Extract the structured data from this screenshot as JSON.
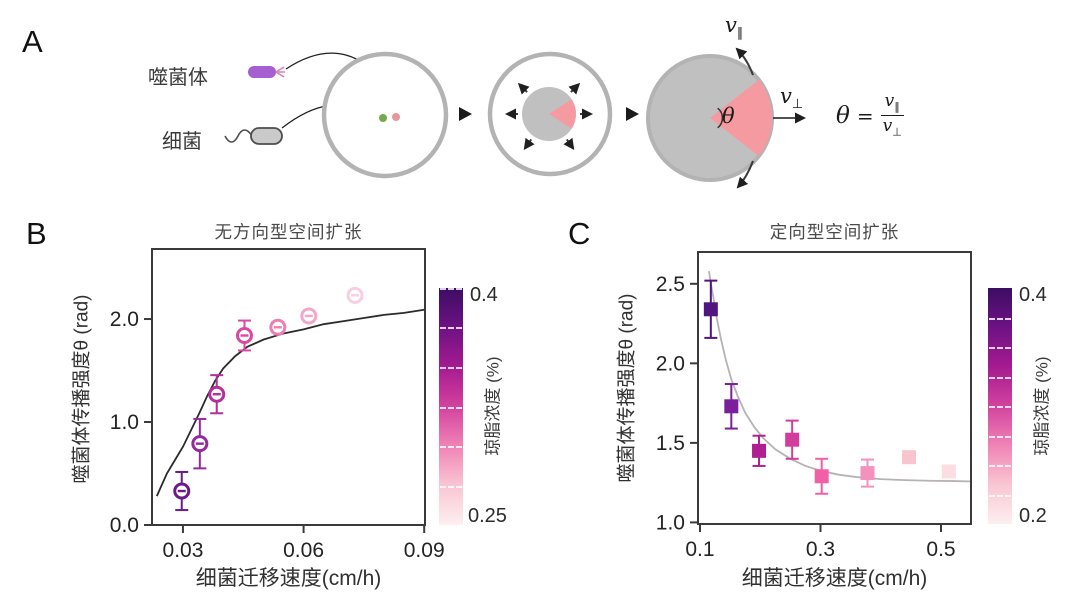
{
  "panel_a": {
    "label": "A",
    "phage_label": "噬菌体",
    "bacteria_label": "细菌",
    "v_parallel": {
      "base": "v",
      "sub": "∥"
    },
    "v_perp": {
      "base": "v",
      "sub": "⊥"
    },
    "theta_angle": "θ",
    "equation": {
      "lhs": "θ",
      "eq": "=",
      "num_base": "v",
      "num_sub": "∥",
      "den_base": "v",
      "den_sub": "⊥"
    },
    "colors": {
      "phage": "#a55fd0",
      "phage_fiber": "#d583b5",
      "bacteria_fill": "#cacaca",
      "bacteria_stroke": "#4d4d4d",
      "dish_ring": "#b3b3b3",
      "colony_gray": "#c1c0c0",
      "plaque_pink": "#f59aa1",
      "dot_green": "#76a84e",
      "dot_pink": "#e697a0",
      "arrow_dark": "#2a2a2a"
    }
  },
  "chart_data": [
    {
      "id": "B",
      "panel_label": "B",
      "type": "scatter",
      "title": "无方向型空间扩张",
      "xlabel": "细菌迁移速度(cm/h)",
      "ylabel": "噬菌体传播强度θ (rad)",
      "xlim": [
        0.0223,
        0.0902
      ],
      "ylim": [
        0,
        2.68
      ],
      "xticks": [
        0.03,
        0.06,
        0.09
      ],
      "xtick_labels": [
        "0.03",
        "0.06",
        "0.09"
      ],
      "yticks": [
        0,
        1,
        2
      ],
      "ytick_labels": [
        "0.0",
        "1.0",
        "2.0"
      ],
      "grid": false,
      "marker": "open-circle",
      "points": [
        {
          "x": 0.0297,
          "y": 0.33,
          "err": 0.185,
          "color": "#6a1c86"
        },
        {
          "x": 0.0342,
          "y": 0.79,
          "err": 0.24,
          "color": "#952a9b"
        },
        {
          "x": 0.0384,
          "y": 1.27,
          "err": 0.185,
          "color": "#b42f9c"
        },
        {
          "x": 0.0453,
          "y": 1.84,
          "err": 0.145,
          "color": "#d84aa2"
        },
        {
          "x": 0.0536,
          "y": 1.92,
          "err": 0.05,
          "color": "#ec7fb4"
        },
        {
          "x": 0.0613,
          "y": 2.03,
          "err": 0.04,
          "color": "#f2a6c8"
        },
        {
          "x": 0.0728,
          "y": 2.23,
          "err": 0.035,
          "color": "#f8cfdc"
        }
      ],
      "fit_curve": {
        "color": "#2b2b2b",
        "points": [
          [
            0.0235,
            0.28
          ],
          [
            0.026,
            0.5
          ],
          [
            0.028,
            0.63
          ],
          [
            0.03,
            0.76
          ],
          [
            0.032,
            0.92
          ],
          [
            0.034,
            1.08
          ],
          [
            0.036,
            1.25
          ],
          [
            0.038,
            1.4
          ],
          [
            0.04,
            1.52
          ],
          [
            0.043,
            1.64
          ],
          [
            0.046,
            1.73
          ],
          [
            0.05,
            1.8
          ],
          [
            0.055,
            1.86
          ],
          [
            0.06,
            1.9
          ],
          [
            0.065,
            1.95
          ],
          [
            0.07,
            1.98
          ],
          [
            0.075,
            2.01
          ],
          [
            0.08,
            2.04
          ],
          [
            0.085,
            2.06
          ],
          [
            0.09,
            2.09
          ]
        ]
      },
      "colorbar": {
        "label": "琼脂浓度 (%)",
        "top_label": "0.4",
        "bottom_label": "0.25",
        "range": [
          0.25,
          0.4
        ],
        "tick_values": [
          0.4,
          0.375,
          0.35,
          0.325,
          0.3,
          0.275,
          0.25
        ],
        "gradient": [
          "#3c0d63",
          "#6d1284",
          "#a51b90",
          "#d2429e",
          "#f083b6",
          "#f9c6d3",
          "#fdeff0"
        ]
      }
    },
    {
      "id": "C",
      "panel_label": "C",
      "type": "scatter",
      "title": "定向型空间扩张",
      "xlabel": "细菌迁移速度(cm/h)",
      "ylabel": "噬菌体传播强度θ (rad)",
      "xlim": [
        0.0967,
        0.5498
      ],
      "ylim": [
        0.99,
        2.7
      ],
      "xticks": [
        0.1,
        0.3,
        0.5
      ],
      "xtick_labels": [
        "0.1",
        "0.3",
        "0.5"
      ],
      "yticks": [
        1.0,
        1.5,
        2.0,
        2.5
      ],
      "ytick_labels": [
        "1.0",
        "1.5",
        "2.0",
        "2.5"
      ],
      "grid": false,
      "marker": "square",
      "points": [
        {
          "x": 0.118,
          "y": 2.34,
          "err": 0.18,
          "color": "#521580"
        },
        {
          "x": 0.152,
          "y": 1.73,
          "err": 0.14,
          "color": "#7c1f9c"
        },
        {
          "x": 0.198,
          "y": 1.45,
          "err": 0.095,
          "color": "#b01f92"
        },
        {
          "x": 0.253,
          "y": 1.52,
          "err": 0.12,
          "color": "#d23c9c"
        },
        {
          "x": 0.302,
          "y": 1.29,
          "err": 0.11,
          "color": "#f060a6"
        },
        {
          "x": 0.378,
          "y": 1.31,
          "err": 0.085,
          "color": "#f591bd"
        },
        {
          "x": 0.447,
          "y": 1.41,
          "err": 0,
          "color": "#f8c5ce"
        },
        {
          "x": 0.513,
          "y": 1.32,
          "err": 0,
          "color": "#fbdde2"
        }
      ],
      "fit_curve": {
        "color": "#b7b2b4",
        "points": [
          [
            0.115,
            2.58
          ],
          [
            0.118,
            2.5
          ],
          [
            0.122,
            2.42
          ],
          [
            0.128,
            2.28
          ],
          [
            0.135,
            2.15
          ],
          [
            0.143,
            2.02
          ],
          [
            0.152,
            1.9
          ],
          [
            0.163,
            1.79
          ],
          [
            0.175,
            1.69
          ],
          [
            0.19,
            1.6
          ],
          [
            0.205,
            1.53
          ],
          [
            0.225,
            1.46
          ],
          [
            0.25,
            1.4
          ],
          [
            0.275,
            1.355
          ],
          [
            0.3,
            1.325
          ],
          [
            0.33,
            1.3
          ],
          [
            0.36,
            1.285
          ],
          [
            0.4,
            1.272
          ],
          [
            0.44,
            1.266
          ],
          [
            0.48,
            1.262
          ],
          [
            0.52,
            1.26
          ],
          [
            0.548,
            1.258
          ]
        ]
      },
      "colorbar": {
        "label": "琼脂浓度 (%)",
        "top_label": "0.4",
        "bottom_label": "0.2",
        "range": [
          0.2,
          0.4
        ],
        "tick_values": [
          0.375,
          0.35,
          0.325,
          0.3,
          0.275,
          0.25,
          0.225,
          0.2
        ],
        "gradient": [
          "#3c0d63",
          "#6d1284",
          "#a51b90",
          "#d2429e",
          "#f083b6",
          "#f9c6d3",
          "#fdeff0"
        ]
      }
    }
  ]
}
